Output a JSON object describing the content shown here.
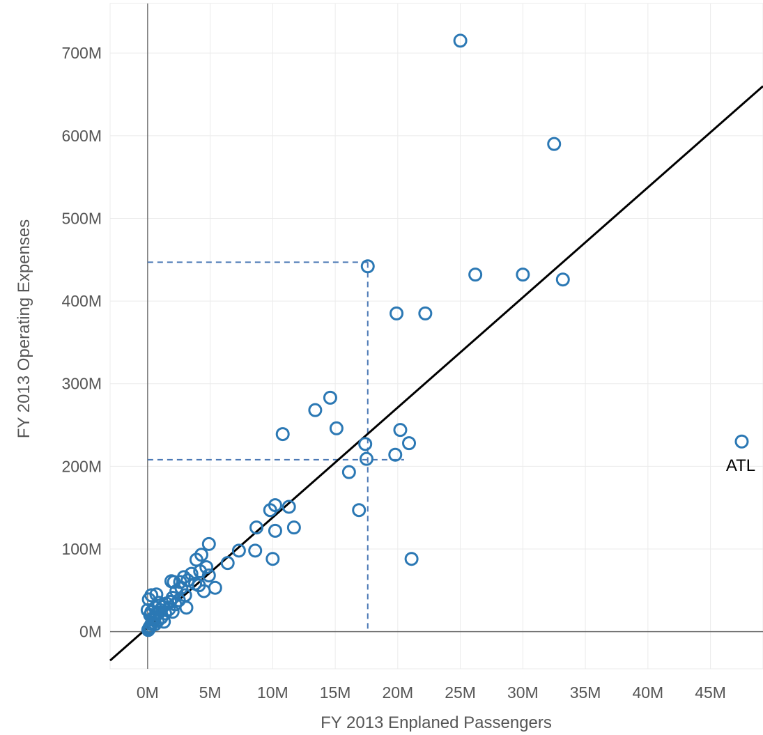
{
  "chart_data": {
    "type": "scatter",
    "title": "",
    "xlabel": "FY 2013 Enplaned Passengers",
    "ylabel": "FY 2013 Operating Expenses",
    "xlim": [
      -3,
      49.2
    ],
    "ylim": [
      -45,
      760
    ],
    "x_unit": "M",
    "y_unit": "M",
    "x_ticks": [
      0,
      5,
      10,
      15,
      20,
      25,
      30,
      35,
      40,
      45
    ],
    "x_tick_labels": [
      "0M",
      "5M",
      "10M",
      "15M",
      "20M",
      "25M",
      "30M",
      "35M",
      "40M",
      "45M"
    ],
    "y_ticks": [
      0,
      100,
      200,
      300,
      400,
      500,
      600,
      700
    ],
    "y_tick_labels": [
      "0M",
      "100M",
      "200M",
      "300M",
      "400M",
      "500M",
      "600M",
      "700M"
    ],
    "grid": true,
    "legend": "none",
    "marker": "hollow-circle",
    "marker_color": "#2b78b4",
    "trend_line": {
      "color": "#000000",
      "x": [
        -3,
        49.2
      ],
      "y": [
        -35,
        660
      ]
    },
    "reference_lines": {
      "color": "#4a78b5",
      "style": "dashed",
      "segments": [
        {
          "x": [
            0,
            17.6
          ],
          "y": [
            447,
            447
          ]
        },
        {
          "x": [
            17.6,
            17.6
          ],
          "y": [
            447,
            0
          ]
        },
        {
          "x": [
            0,
            20.5
          ],
          "y": [
            208,
            208
          ]
        }
      ]
    },
    "annotations": [
      {
        "text": "ATL",
        "x": 47.5,
        "y": 230
      }
    ],
    "points": [
      [
        25.0,
        715
      ],
      [
        32.5,
        590
      ],
      [
        17.6,
        442
      ],
      [
        26.2,
        432
      ],
      [
        30.0,
        432
      ],
      [
        33.2,
        426
      ],
      [
        19.9,
        385
      ],
      [
        22.2,
        385
      ],
      [
        14.6,
        283
      ],
      [
        13.4,
        268
      ],
      [
        15.1,
        246
      ],
      [
        10.8,
        239
      ],
      [
        20.2,
        244
      ],
      [
        17.4,
        227
      ],
      [
        20.9,
        228
      ],
      [
        17.5,
        209
      ],
      [
        19.8,
        214
      ],
      [
        16.1,
        193
      ],
      [
        16.9,
        147
      ],
      [
        47.5,
        230
      ],
      [
        21.1,
        88
      ],
      [
        10.2,
        153
      ],
      [
        9.8,
        147
      ],
      [
        11.3,
        151
      ],
      [
        8.7,
        126
      ],
      [
        11.7,
        126
      ],
      [
        10.2,
        122
      ],
      [
        10.0,
        88
      ],
      [
        8.6,
        98
      ],
      [
        7.3,
        98
      ],
      [
        6.4,
        83
      ],
      [
        4.9,
        106
      ],
      [
        5.4,
        53
      ],
      [
        4.5,
        49
      ],
      [
        4.3,
        93
      ],
      [
        3.9,
        87
      ],
      [
        4.7,
        78
      ],
      [
        4.9,
        68
      ],
      [
        4.2,
        73
      ],
      [
        3.5,
        70
      ],
      [
        3.2,
        62
      ],
      [
        3.8,
        58
      ],
      [
        2.9,
        66
      ],
      [
        2.6,
        60
      ],
      [
        2.1,
        60
      ],
      [
        1.9,
        61
      ],
      [
        2.7,
        53
      ],
      [
        2.3,
        49
      ],
      [
        3.1,
        29
      ],
      [
        2.0,
        41
      ],
      [
        1.8,
        36
      ],
      [
        1.5,
        34
      ],
      [
        1.2,
        30
      ],
      [
        1.0,
        26
      ],
      [
        0.9,
        23
      ],
      [
        0.7,
        21
      ],
      [
        0.6,
        18
      ],
      [
        0.5,
        14
      ],
      [
        0.4,
        11
      ],
      [
        0.3,
        9
      ],
      [
        0.2,
        6
      ],
      [
        0.15,
        5
      ],
      [
        0.1,
        3
      ],
      [
        0.05,
        2
      ],
      [
        0.3,
        44
      ],
      [
        0.7,
        45
      ],
      [
        0.1,
        39
      ],
      [
        0.0,
        26
      ],
      [
        0.2,
        20
      ],
      [
        0.4,
        16
      ],
      [
        0.8,
        13
      ],
      [
        1.1,
        17
      ],
      [
        1.4,
        22
      ],
      [
        1.7,
        27
      ],
      [
        2.2,
        33
      ],
      [
        2.5,
        38
      ],
      [
        0.6,
        29
      ],
      [
        0.9,
        35
      ],
      [
        0.3,
        24
      ],
      [
        1.3,
        12
      ],
      [
        0.6,
        9
      ],
      [
        2.0,
        24
      ],
      [
        3.0,
        44
      ],
      [
        4.1,
        56
      ]
    ]
  }
}
